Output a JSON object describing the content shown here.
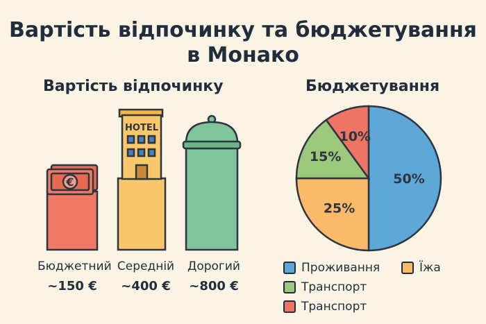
{
  "title_line1": "Вартість відпочинку та бюджетування",
  "title_line2": "в Монако",
  "left_heading": "Вартість відпочинку",
  "right_heading": "Бюджетування",
  "hotel_sign": "HOTEL",
  "euro_symbol": "€",
  "colors": {
    "budget": "#f07a63",
    "mid": "#fbc76b",
    "expensive": "#7fc49b",
    "outline": "#2b3440",
    "pie_blue": "#5ea8d8",
    "pie_orange": "#fbb96a",
    "pie_green": "#9bc87a",
    "pie_red": "#ee7463"
  },
  "chart_data": [
    {
      "type": "bar",
      "title": "Вартість відпочинку",
      "categories": [
        "Бюджетний",
        "Середній",
        "Дорогий"
      ],
      "values": [
        150,
        400,
        800
      ],
      "value_labels": [
        "~150 €",
        "~400 €",
        "~800 €"
      ],
      "unit": "€",
      "icons": [
        "euro-banknote-icon",
        "hotel-building-icon",
        "cloche-tower-icon"
      ]
    },
    {
      "type": "pie",
      "title": "Бюджетування",
      "series": [
        {
          "label": "50%",
          "value": 50,
          "color": "#5ea8d8"
        },
        {
          "label": "25%",
          "value": 25,
          "color": "#fbb96a"
        },
        {
          "label": "15%",
          "value": 15,
          "color": "#9bc87a"
        },
        {
          "label": "10%",
          "value": 10,
          "color": "#ee7463"
        }
      ],
      "legend": [
        {
          "label": "Проживання",
          "color": "#5ea8d8"
        },
        {
          "label": "Їжа",
          "color": "#fbb96a"
        },
        {
          "label": "Транспорт",
          "color": "#9bc87a"
        },
        {
          "label": "Транспорт",
          "color": "#ee7463"
        }
      ],
      "legend_position": "bottom"
    }
  ]
}
